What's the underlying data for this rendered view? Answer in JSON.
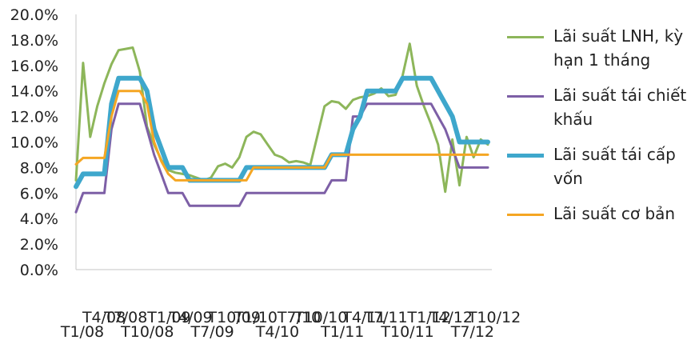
{
  "chart_data": {
    "type": "line",
    "ylim": [
      0,
      20
    ],
    "y_tick_labels": [
      "0.0%",
      "2.0%",
      "4.0%",
      "6.0%",
      "8.0%",
      "10.0%",
      "12.0%",
      "14.0%",
      "16.0%",
      "18.0%",
      "20.0%"
    ],
    "x_tick_labels": [
      "T1/08",
      "T4/08",
      "T7/08",
      "T10/08",
      "T1/09",
      "T4/09",
      "T7/09",
      "T10/09",
      "T1/10",
      "T4/10",
      "T7/10",
      "T10/10",
      "T1/11",
      "T4/11",
      "T7/11",
      "T10/11",
      "T1/12",
      "T4/12",
      "T7/12",
      "T10/12"
    ],
    "x": [
      0,
      1,
      2,
      3,
      4,
      5,
      6,
      7,
      8,
      9,
      10,
      11,
      12,
      13,
      14,
      15,
      16,
      17,
      18,
      19,
      20,
      21,
      22,
      23,
      24,
      25,
      26,
      27,
      28,
      29,
      30,
      31,
      32,
      33,
      34,
      35,
      36,
      37,
      38,
      39,
      40,
      41,
      42,
      43,
      44,
      45,
      46,
      47,
      48,
      49,
      50,
      51,
      52,
      53,
      54,
      55,
      56,
      57,
      58
    ],
    "series": [
      {
        "name": "Lãi suất LNH, kỳ hạn 1 tháng",
        "color": "#8db65a",
        "values": [
          7.0,
          16.2,
          10.4,
          12.8,
          14.6,
          16.1,
          17.2,
          17.3,
          17.4,
          15.5,
          11.2,
          9.8,
          8.6,
          7.8,
          7.6,
          7.5,
          7.4,
          7.2,
          7.0,
          7.2,
          8.1,
          8.3,
          8.0,
          8.8,
          10.4,
          10.8,
          10.6,
          9.8,
          9.0,
          8.8,
          8.4,
          8.5,
          8.4,
          8.2,
          10.5,
          12.8,
          13.2,
          13.1,
          12.6,
          13.3,
          13.5,
          13.6,
          13.8,
          14.2,
          13.6,
          13.7,
          15.2,
          17.7,
          14.4,
          12.8,
          11.4,
          9.8,
          6.1,
          10.2,
          6.6,
          10.4,
          8.8,
          10.2,
          9.8
        ],
        "width": 3
      },
      {
        "name": "Lãi suất tái chiết khấu",
        "color": "#7d5fa6",
        "values": [
          4.5,
          6.0,
          6.0,
          6.0,
          6.0,
          11.0,
          13.0,
          13.0,
          13.0,
          13.0,
          11.0,
          9.0,
          7.5,
          6.0,
          6.0,
          6.0,
          5.0,
          5.0,
          5.0,
          5.0,
          5.0,
          5.0,
          5.0,
          5.0,
          6.0,
          6.0,
          6.0,
          6.0,
          6.0,
          6.0,
          6.0,
          6.0,
          6.0,
          6.0,
          6.0,
          6.0,
          7.0,
          7.0,
          7.0,
          12.0,
          12.0,
          13.0,
          13.0,
          13.0,
          13.0,
          13.0,
          13.0,
          13.0,
          13.0,
          13.0,
          13.0,
          12.0,
          11.0,
          9.5,
          8.0,
          8.0,
          8.0,
          8.0,
          8.0
        ],
        "width": 3
      },
      {
        "name": "Lãi suất tái cấp vốn",
        "color": "#3ea7cc",
        "values": [
          6.5,
          7.5,
          7.5,
          7.5,
          7.5,
          13.0,
          15.0,
          15.0,
          15.0,
          15.0,
          14.0,
          11.0,
          9.5,
          8.0,
          8.0,
          8.0,
          7.0,
          7.0,
          7.0,
          7.0,
          7.0,
          7.0,
          7.0,
          7.0,
          8.0,
          8.0,
          8.0,
          8.0,
          8.0,
          8.0,
          8.0,
          8.0,
          8.0,
          8.0,
          8.0,
          8.0,
          9.0,
          9.0,
          9.0,
          11.0,
          12.0,
          14.0,
          14.0,
          14.0,
          14.0,
          14.0,
          15.0,
          15.0,
          15.0,
          15.0,
          15.0,
          14.0,
          13.0,
          12.0,
          10.0,
          10.0,
          10.0,
          10.0,
          10.0
        ],
        "width": 6
      },
      {
        "name": "Lãi suất cơ bản",
        "color": "#f5a623",
        "values": [
          8.25,
          8.75,
          8.75,
          8.75,
          8.75,
          12.0,
          14.0,
          14.0,
          14.0,
          14.0,
          13.0,
          10.0,
          8.5,
          7.5,
          7.0,
          7.0,
          7.0,
          7.0,
          7.0,
          7.0,
          7.0,
          7.0,
          7.0,
          7.0,
          7.0,
          8.0,
          8.0,
          8.0,
          8.0,
          8.0,
          8.0,
          8.0,
          8.0,
          8.0,
          8.0,
          8.0,
          9.0,
          9.0,
          9.0,
          9.0,
          9.0,
          9.0,
          9.0,
          9.0,
          9.0,
          9.0,
          9.0,
          9.0,
          9.0,
          9.0,
          9.0,
          9.0,
          9.0,
          9.0,
          9.0,
          9.0,
          9.0,
          9.0,
          9.0
        ],
        "width": 3
      }
    ],
    "grid": false,
    "legend_position": "right"
  }
}
